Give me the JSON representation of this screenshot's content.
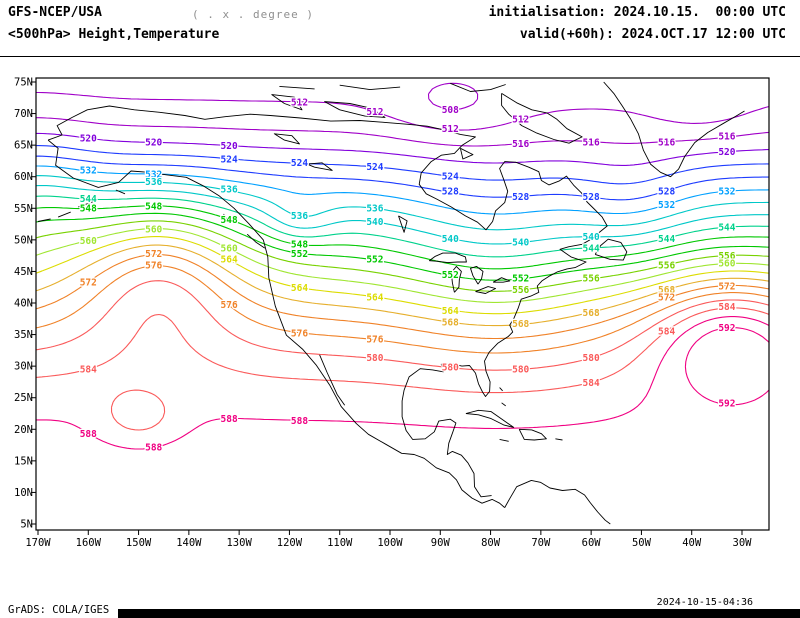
{
  "header": {
    "model": "GFS-NCEP/USA",
    "resolution_note": "( . x . degree )",
    "subtitle": "<500hPa> Height,Temperature",
    "initialisation": "initialisation: 2024.10.15.  00:00 UTC",
    "valid": "valid(+60h): 2024.OCT.17 12:00 UTC"
  },
  "footer": {
    "credit": "GrADS: COLA/IGES",
    "generated": "2024-10-15-04:36"
  },
  "chart_data": {
    "type": "contour-map",
    "title": "<500hPa> Height,Temperature",
    "model": "GFS-NCEP/USA",
    "variable": "500 hPa geopotential height (dam)",
    "projection": "latlon",
    "lat_range": [
      "5N",
      "75N"
    ],
    "lon_range": [
      "170W",
      "30W"
    ],
    "lat_ticks": [
      "75N",
      "70N",
      "65N",
      "60N",
      "55N",
      "50N",
      "45N",
      "40N",
      "35N",
      "30N",
      "25N",
      "20N",
      "15N",
      "10N",
      "5N"
    ],
    "lon_ticks": [
      "170W",
      "160W",
      "150W",
      "140W",
      "130W",
      "120W",
      "110W",
      "100W",
      "90W",
      "80W",
      "70W",
      "60W",
      "50W",
      "40W",
      "30W"
    ],
    "contour_interval": 4,
    "contour_levels": [
      508,
      512,
      516,
      520,
      524,
      528,
      532,
      536,
      540,
      544,
      548,
      552,
      556,
      560,
      564,
      568,
      572,
      576,
      580,
      584,
      588,
      592
    ],
    "level_colors": {
      "508": "#a000c8",
      "512": "#a000c8",
      "516": "#a000c8",
      "520": "#8200dc",
      "524": "#1e3cff",
      "528": "#1e3cff",
      "532": "#00a0ff",
      "536": "#00c8c8",
      "540": "#00c8c8",
      "544": "#00d28c",
      "548": "#00c800",
      "552": "#00c800",
      "556": "#78d200",
      "560": "#a0e632",
      "564": "#dcdc00",
      "568": "#e6af2d",
      "572": "#f08228",
      "576": "#f08228",
      "580": "#fa5a5a",
      "584": "#fa5a5a",
      "588": "#f00082",
      "592": "#f00082"
    },
    "features": [
      {
        "type": "closed_low",
        "level": 508,
        "location": "top center, northern Canada"
      },
      {
        "type": "closed_low",
        "level": 512,
        "location": "top right, Greenland"
      },
      {
        "type": "closed_low",
        "level": 536,
        "location": "western Canada ~55N 120W"
      },
      {
        "type": "closed_low",
        "level": 584,
        "location": "subtropical Pacific ~22N 150W"
      },
      {
        "type": "ridge",
        "level": 592,
        "location": "western Atlantic ~35N"
      },
      {
        "type": "ridge",
        "level": 576,
        "location": "northeast Pacific ~145W"
      }
    ]
  }
}
